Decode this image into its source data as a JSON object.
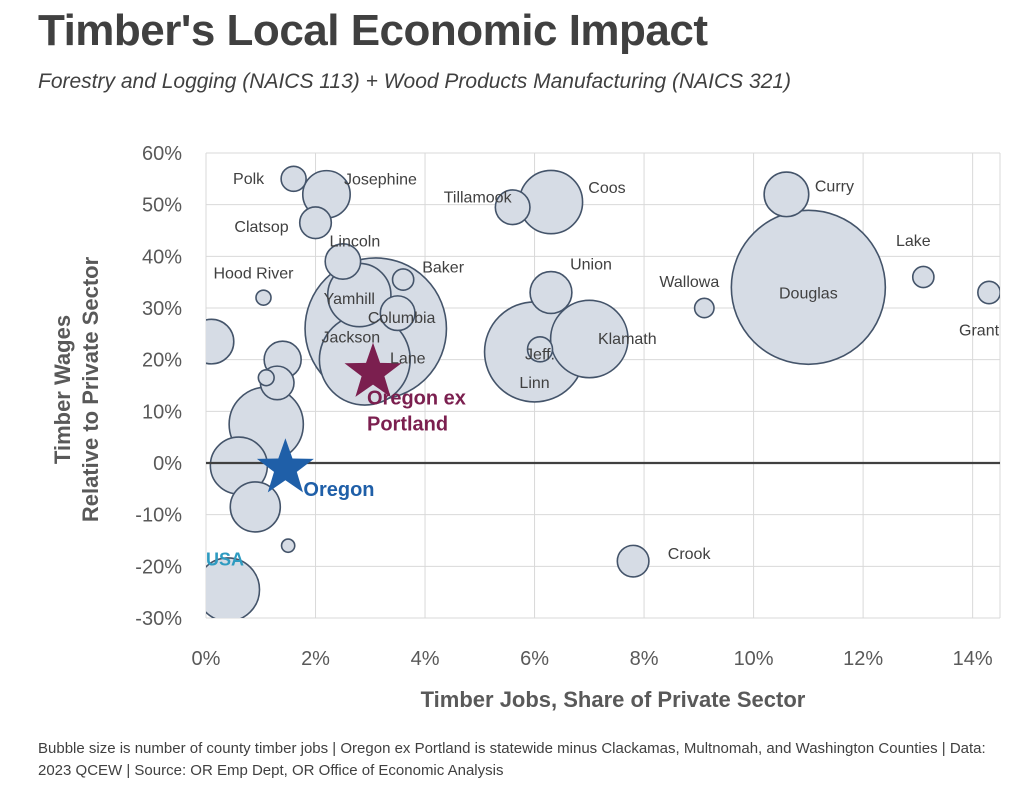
{
  "title": "Timber's Local Economic Impact",
  "subtitle": "Forestry and Logging (NAICS 113) + Wood Products Manufacturing (NAICS 321)",
  "footnote": "Bubble size is number of county timber jobs | Oregon ex Portland is statewide minus Clackamas, Multnomah, and Washington Counties | Data: 2023 QCEW | Source: OR Emp Dept, OR Office of Economic Analysis",
  "colors": {
    "bubble_fill": "#d6dce5",
    "bubble_stroke": "#44546a",
    "oregon_ex_portland": "#7b1f4f",
    "oregon": "#1f5fa8",
    "usa": "#2e9bc1",
    "zero_line": "#404040"
  },
  "chart_data": {
    "type": "scatter",
    "subtype": "bubble",
    "xlabel": "Timber Jobs, Share of Private Sector",
    "ylabel_lines": [
      "Timber Wages",
      "Relative to Private Sector"
    ],
    "xlim": [
      0,
      14.5
    ],
    "ylim": [
      -30,
      60
    ],
    "x_ticks": [
      0,
      2,
      4,
      6,
      8,
      10,
      12,
      14
    ],
    "x_tick_labels": [
      "0%",
      "2%",
      "4%",
      "6%",
      "8%",
      "10%",
      "12%",
      "14%"
    ],
    "y_ticks": [
      -30,
      -20,
      -10,
      0,
      10,
      20,
      30,
      40,
      50,
      60
    ],
    "y_tick_labels": [
      "-30%",
      "-20%",
      "-10%",
      "0%",
      "10%",
      "20%",
      "30%",
      "40%",
      "50%",
      "60%"
    ],
    "grid": true,
    "bubble_size_meaning": "number of county timber jobs",
    "points": [
      {
        "label": "Douglas",
        "x": 11.0,
        "y": 34,
        "size": 9500
      },
      {
        "label": "Lane",
        "x": 3.1,
        "y": 26,
        "size": 8000
      },
      {
        "label": "Linn",
        "x": 6.0,
        "y": 21.5,
        "size": 4000
      },
      {
        "label": "Jackson",
        "x": 2.9,
        "y": 20,
        "size": 3300
      },
      {
        "label": "Klamath",
        "x": 7.0,
        "y": 24,
        "size": 2400
      },
      {
        "label": "Coos",
        "x": 6.3,
        "y": 50.5,
        "size": 1600
      },
      {
        "label": "",
        "x": 0.4,
        "y": -24.5,
        "size": 1600
      },
      {
        "label": "",
        "x": 1.1,
        "y": 7.5,
        "size": 2200
      },
      {
        "label": "Yamhill",
        "x": 2.8,
        "y": 32.5,
        "size": 1600
      },
      {
        "label": "",
        "x": 0.6,
        "y": -0.5,
        "size": 1300
      },
      {
        "label": "",
        "x": 0.9,
        "y": -8.5,
        "size": 1000
      },
      {
        "label": "Union",
        "x": 6.3,
        "y": 33,
        "size": 700
      },
      {
        "label": "Curry",
        "x": 10.6,
        "y": 52,
        "size": 800
      },
      {
        "label": "Josephine",
        "x": 2.2,
        "y": 52,
        "size": 900
      },
      {
        "label": "",
        "x": 0.1,
        "y": 23.5,
        "size": 800
      },
      {
        "label": "Lincoln",
        "x": 2.5,
        "y": 39,
        "size": 500
      },
      {
        "label": "Tillamook",
        "x": 5.6,
        "y": 49.5,
        "size": 480
      },
      {
        "label": "Columbia",
        "x": 3.5,
        "y": 29,
        "size": 480
      },
      {
        "label": "Clatsop",
        "x": 2.0,
        "y": 46.5,
        "size": 400
      },
      {
        "label": "Crook",
        "x": 7.8,
        "y": -19,
        "size": 400
      },
      {
        "label": "",
        "x": 1.4,
        "y": 20,
        "size": 550
      },
      {
        "label": "",
        "x": 1.3,
        "y": 15.5,
        "size": 450
      },
      {
        "label": "Jeff.",
        "x": 6.1,
        "y": 22,
        "size": 250
      },
      {
        "label": "Polk",
        "x": 1.6,
        "y": 55,
        "size": 250
      },
      {
        "label": "Baker",
        "x": 3.6,
        "y": 35.5,
        "size": 180
      },
      {
        "label": "Lake",
        "x": 13.1,
        "y": 36,
        "size": 180
      },
      {
        "label": "Grant",
        "x": 14.3,
        "y": 33,
        "size": 200
      },
      {
        "label": "Wallowa",
        "x": 9.1,
        "y": 30,
        "size": 150
      },
      {
        "label": "",
        "x": 1.1,
        "y": 16.5,
        "size": 100
      },
      {
        "label": "Hood River",
        "x": 1.05,
        "y": 32,
        "size": 90
      },
      {
        "label": "",
        "x": 1.5,
        "y": -16,
        "size": 70
      }
    ],
    "markers": [
      {
        "label": "Oregon ex Portland",
        "label_lines": [
          "Oregon ex",
          "Portland"
        ],
        "x": 3.05,
        "y": 17.5,
        "shape": "star",
        "color": "#7b1f4f"
      },
      {
        "label": "Oregon",
        "label_lines": [
          "Oregon"
        ],
        "x": 1.45,
        "y": -1,
        "shape": "star",
        "color": "#1f5fa8"
      },
      {
        "label": "USA",
        "label_lines": [
          "USA"
        ],
        "x": 0.0,
        "y": -18.5,
        "shape": "none",
        "color": "#2e9bc1"
      }
    ]
  }
}
